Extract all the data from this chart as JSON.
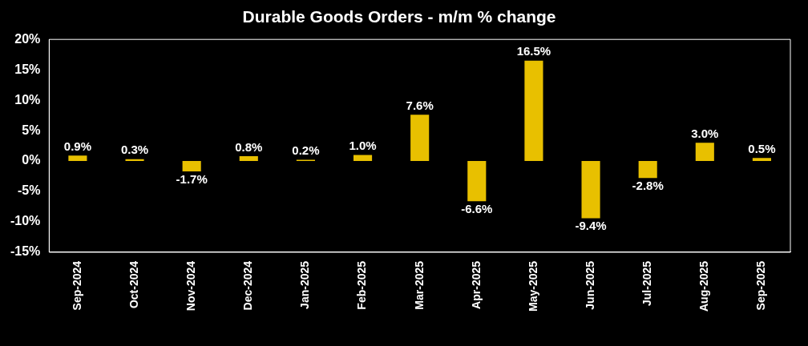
{
  "chart_data": {
    "type": "bar",
    "title": "Durable Goods Orders - m/m % change",
    "categories": [
      "Sep-2024",
      "Oct-2024",
      "Nov-2024",
      "Dec-2024",
      "Jan-2025",
      "Feb-2025",
      "Mar-2025",
      "Apr-2025",
      "May-2025",
      "Jun-2025",
      "Jul-2025",
      "Aug-2025",
      "Sep-2025"
    ],
    "values": [
      0.9,
      0.3,
      -1.7,
      0.8,
      0.2,
      1.0,
      7.6,
      -6.6,
      16.5,
      -9.4,
      -2.8,
      3.0,
      0.5
    ],
    "value_labels": [
      "0.9%",
      "0.3%",
      "-1.7%",
      "0.8%",
      "0.2%",
      "1.0%",
      "7.6%",
      "-6.6%",
      "16.5%",
      "-9.4%",
      "-2.8%",
      "3.0%",
      "0.5%"
    ],
    "color": "#e8c000",
    "ylim": [
      -15,
      20
    ],
    "yticks": [
      {
        "value": -15,
        "label": "-15%"
      },
      {
        "value": -10,
        "label": "-10%"
      },
      {
        "value": -5,
        "label": "-5%"
      },
      {
        "value": 0,
        "label": "0%"
      },
      {
        "value": 5,
        "label": "5%"
      },
      {
        "value": 10,
        "label": "10%"
      },
      {
        "value": 15,
        "label": "15%"
      },
      {
        "value": 20,
        "label": "20%"
      }
    ],
    "grid": false,
    "legend": false
  }
}
